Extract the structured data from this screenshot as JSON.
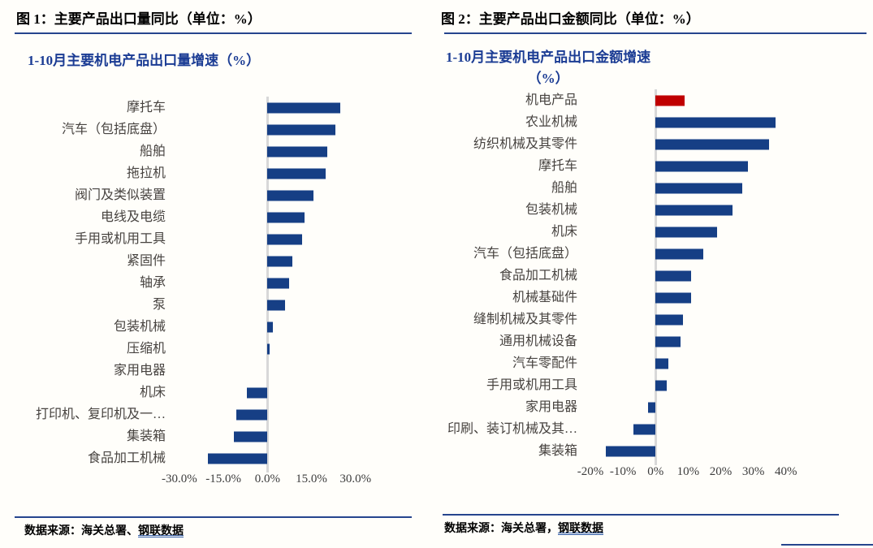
{
  "figure1": {
    "header": "图 1：主要产品出口量同比（单位：%）",
    "source_prefix": "数据来源：海关总署、",
    "source_link": "钢联数据"
  },
  "figure2": {
    "header": "图 2：主要产品出口金额同比（单位：%）",
    "source_prefix": "数据来源：海关总署，",
    "source_link": "钢联数据"
  },
  "chart_data": [
    {
      "type": "bar",
      "orientation": "horizontal",
      "title": "1-10月主要机电产品出口量增速（%）",
      "title_lines": [
        "1-10月主要机电产品出口量增速（%）"
      ],
      "categories": [
        "摩托车",
        "汽车（包括底盘）",
        "船舶",
        "拖拉机",
        "阀门及类似装置",
        "电线及电缆",
        "手用或机用工具",
        "紧固件",
        "轴承",
        "泵",
        "包装机械",
        "压缩机",
        "家用电器",
        "机床",
        "打印机、复印机及一…",
        "集装箱",
        "食品加工机械"
      ],
      "values": [
        24.8,
        23.2,
        20.4,
        19.9,
        15.8,
        12.5,
        11.7,
        8.4,
        7.4,
        6.0,
        1.9,
        0.8,
        0.0,
        -7.1,
        -10.6,
        -11.4,
        -20.2
      ],
      "ticks": [
        {
          "v": -30,
          "label": "-30.0%"
        },
        {
          "v": -15,
          "label": "-15.0%"
        },
        {
          "v": 0,
          "label": "0.0%"
        },
        {
          "v": 15,
          "label": "15.0%"
        },
        {
          "v": 30,
          "label": "30.0%"
        }
      ],
      "axis": {
        "min": -33,
        "max": 55.5
      },
      "bar_color": "#163f85",
      "axis_line_color": "#d8d8d8",
      "grid": false,
      "legend": false,
      "xlabel": "",
      "ylabel": ""
    },
    {
      "type": "bar",
      "orientation": "horizontal",
      "title": "1-10月主要机电产品出口金额增速（%）",
      "title_lines": [
        "1-10月主要机电产品出口金额增速",
        "（%）"
      ],
      "categories": [
        "机电产品",
        "农业机械",
        "纺织机械及其零件",
        "摩托车",
        "船舶",
        "包装机械",
        "机床",
        "汽车（包括底盘）",
        "食品加工机械",
        "机械基础件",
        "缝制机械及其零件",
        "通用机械设备",
        "汽车零配件",
        "手用或机用工具",
        "家用电器",
        "印刷、装订机械及其…",
        "集装箱"
      ],
      "values": [
        8.8,
        36.8,
        34.8,
        28.4,
        26.6,
        23.6,
        18.9,
        14.6,
        10.9,
        10.9,
        8.4,
        7.6,
        3.9,
        3.4,
        -2.3,
        -6.9,
        -15.2
      ],
      "ticks": [
        {
          "v": -20,
          "label": "-20%"
        },
        {
          "v": -10,
          "label": "-10%"
        },
        {
          "v": 0,
          "label": "0%"
        },
        {
          "v": 10,
          "label": "10%"
        },
        {
          "v": 20,
          "label": "20%"
        },
        {
          "v": 30,
          "label": "30%"
        },
        {
          "v": 40,
          "label": "40%"
        }
      ],
      "axis": {
        "min": -22.5,
        "max": 64
      },
      "bar_color": "#163f85",
      "highlight": {
        "index": 0,
        "color": "#c00000"
      },
      "axis_line_color": "#d8d8d8",
      "grid": false,
      "legend": false,
      "xlabel": "",
      "ylabel": ""
    }
  ]
}
